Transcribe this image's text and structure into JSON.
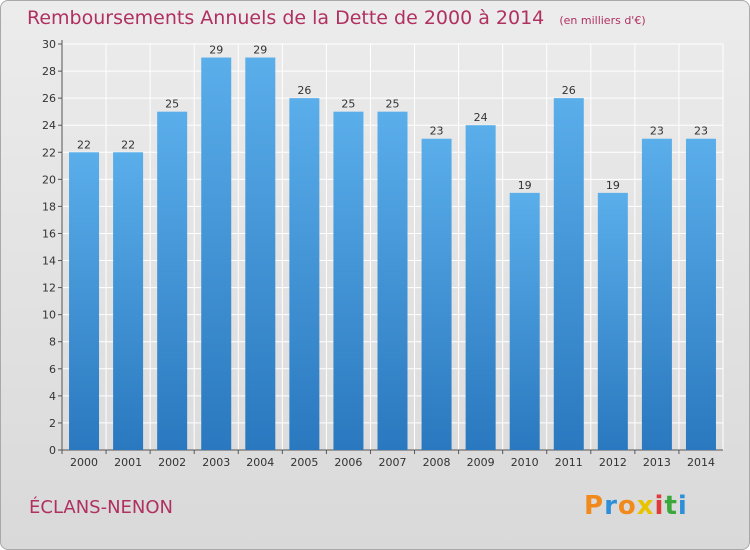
{
  "chart_data": {
    "type": "bar",
    "title": "Remboursements Annuels de la Dette de 2000 à 2014",
    "subtitle": "(en milliers d'€)",
    "categories": [
      "2000",
      "2001",
      "2002",
      "2003",
      "2004",
      "2005",
      "2006",
      "2007",
      "2008",
      "2009",
      "2010",
      "2011",
      "2012",
      "2013",
      "2014"
    ],
    "values": [
      22,
      22,
      25,
      29,
      29,
      26,
      25,
      25,
      23,
      24,
      19,
      26,
      19,
      23,
      23
    ],
    "ylim": [
      0,
      30
    ],
    "yticks": [
      0,
      2,
      4,
      6,
      8,
      10,
      12,
      14,
      16,
      18,
      20,
      22,
      24,
      26,
      28,
      30
    ],
    "grid": true,
    "xlabel": "",
    "ylabel": ""
  },
  "commune": "ÉCLANS-NENON",
  "logo": {
    "letters": [
      "P",
      "r",
      "o",
      "x",
      "i",
      "t",
      "i"
    ],
    "colors": [
      "#f08a1c",
      "#2e8fd8",
      "#f08a1c",
      "#e8c400",
      "#e03a3a",
      "#3aa83a",
      "#2e8fd8"
    ]
  },
  "colors": {
    "bar_light": "#5aaeea",
    "bar_dark": "#2a78bf",
    "grid": "#ffffff",
    "title": "#b03060"
  }
}
